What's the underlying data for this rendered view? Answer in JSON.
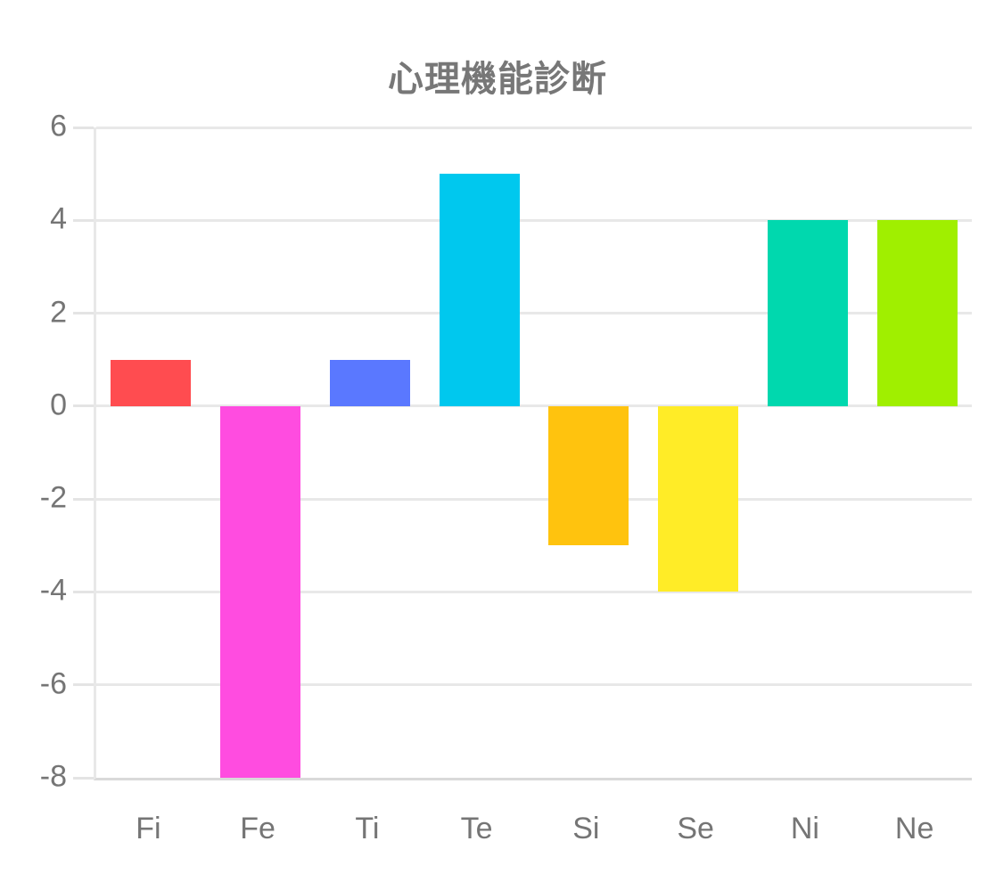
{
  "chart_data": {
    "type": "bar",
    "title": "心理機能診断",
    "categories": [
      "Fi",
      "Fe",
      "Ti",
      "Te",
      "Si",
      "Se",
      "Ni",
      "Ne"
    ],
    "values": [
      1,
      -8,
      1,
      5,
      -3,
      -4,
      4,
      4
    ],
    "bar_colors": [
      "#FF4C50",
      "#FF4CE0",
      "#5A78FF",
      "#00C8EE",
      "#FFC30E",
      "#FFEC27",
      "#00D8AE",
      "#A0EF00"
    ],
    "ylim": [
      -8,
      6
    ],
    "yticks": [
      6,
      4,
      2,
      0,
      -2,
      -4,
      -6,
      -8
    ],
    "xlabel": "",
    "ylabel": "",
    "grid": "horizontal",
    "legend": "none"
  },
  "styles": {
    "background": "#FFFFFF",
    "title_color": "#777777",
    "axis_label_color": "#757575",
    "gridline_color": "#E8E8E8",
    "baseline_color": "#D9D9D9"
  }
}
